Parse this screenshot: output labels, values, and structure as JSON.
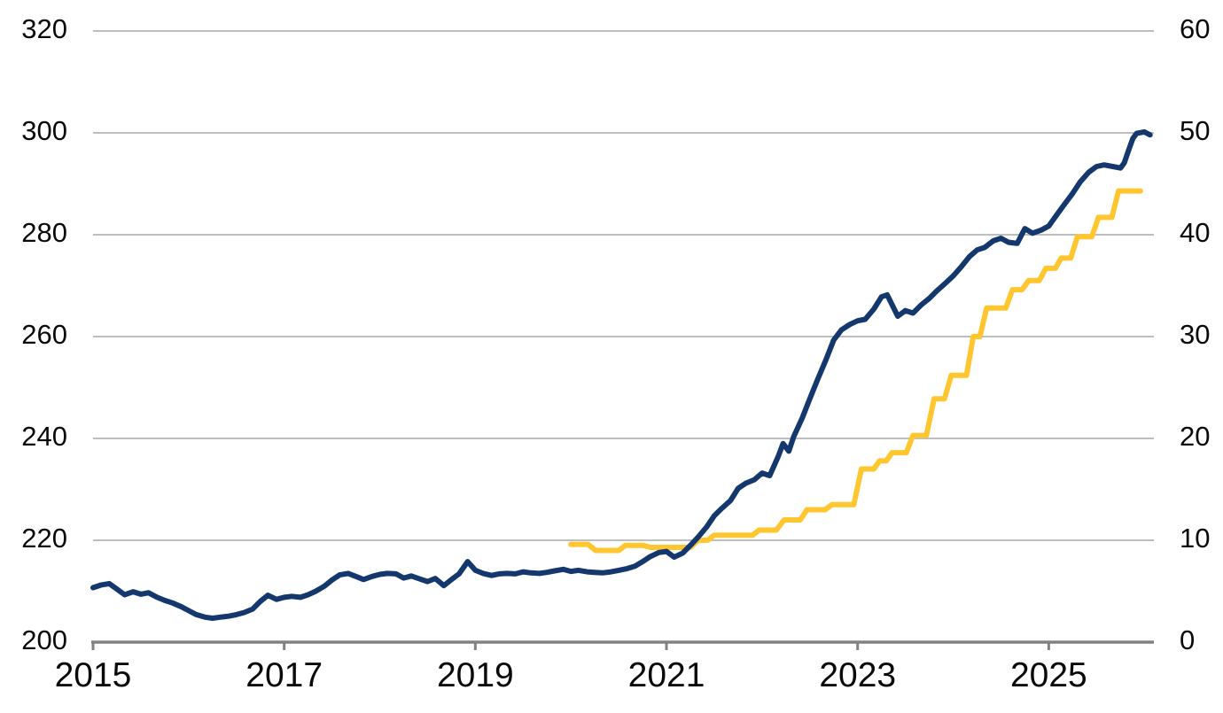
{
  "chart_data": {
    "type": "line",
    "grid": true,
    "legend": "none",
    "background": "#ffffff",
    "colors": {
      "navy_series": "#14386e",
      "yellow_series": "#ffc62f",
      "gridline": "#b4b4b4",
      "axis": "#828282",
      "label_text": "#0a0a0a"
    },
    "x_axis": {
      "range": [
        2015,
        2026.1
      ],
      "ticks": [
        2015,
        2017,
        2019,
        2021,
        2023,
        2025
      ],
      "tick_labels": [
        "2015",
        "2017",
        "2019",
        "2021",
        "2023",
        "2025"
      ]
    },
    "left_axis": {
      "range": [
        200,
        320
      ],
      "ticks": [
        200,
        220,
        240,
        260,
        280,
        300,
        320
      ],
      "tick_labels": [
        "200",
        "220",
        "240",
        "260",
        "280",
        "300",
        "320"
      ]
    },
    "right_axis": {
      "range": [
        0,
        60
      ],
      "ticks": [
        0,
        10,
        20,
        30,
        40,
        50,
        60
      ],
      "tick_labels": [
        "0",
        "10",
        "20",
        "30",
        "40",
        "50",
        "60"
      ]
    },
    "series": [
      {
        "name": "yellow-stepped-rate-line",
        "axis": "right",
        "color_key": "yellow_series",
        "points": [
          [
            2020.0,
            9.6
          ],
          [
            2020.18,
            9.6
          ],
          [
            2020.26,
            9.0
          ],
          [
            2020.5,
            9.0
          ],
          [
            2020.57,
            9.5
          ],
          [
            2020.76,
            9.5
          ],
          [
            2020.83,
            9.3
          ],
          [
            2021.25,
            9.3
          ],
          [
            2021.33,
            10.0
          ],
          [
            2021.43,
            10.0
          ],
          [
            2021.5,
            10.5
          ],
          [
            2021.9,
            10.5
          ],
          [
            2021.97,
            11.0
          ],
          [
            2022.15,
            11.0
          ],
          [
            2022.23,
            12.0
          ],
          [
            2022.4,
            12.0
          ],
          [
            2022.47,
            13.0
          ],
          [
            2022.66,
            13.0
          ],
          [
            2022.73,
            13.5
          ],
          [
            2022.96,
            13.5
          ],
          [
            2023.04,
            17.0
          ],
          [
            2023.17,
            17.0
          ],
          [
            2023.23,
            17.8
          ],
          [
            2023.3,
            17.8
          ],
          [
            2023.36,
            18.6
          ],
          [
            2023.51,
            18.6
          ],
          [
            2023.58,
            20.3
          ],
          [
            2023.72,
            20.3
          ],
          [
            2023.8,
            23.9
          ],
          [
            2023.91,
            23.9
          ],
          [
            2023.98,
            26.2
          ],
          [
            2024.14,
            26.2
          ],
          [
            2024.21,
            30.0
          ],
          [
            2024.28,
            30.0
          ],
          [
            2024.35,
            32.8
          ],
          [
            2024.55,
            32.8
          ],
          [
            2024.62,
            34.6
          ],
          [
            2024.72,
            34.6
          ],
          [
            2024.79,
            35.5
          ],
          [
            2024.9,
            35.5
          ],
          [
            2024.97,
            36.7
          ],
          [
            2025.07,
            36.7
          ],
          [
            2025.13,
            37.7
          ],
          [
            2025.23,
            37.7
          ],
          [
            2025.3,
            39.8
          ],
          [
            2025.45,
            39.8
          ],
          [
            2025.52,
            41.7
          ],
          [
            2025.66,
            41.7
          ],
          [
            2025.73,
            44.3
          ],
          [
            2025.96,
            44.3
          ]
        ]
      },
      {
        "name": "navy-index-line",
        "axis": "left",
        "color_key": "navy_series",
        "points": [
          [
            2015.0,
            210.7
          ],
          [
            2015.08,
            211.2
          ],
          [
            2015.17,
            211.5
          ],
          [
            2015.25,
            210.4
          ],
          [
            2015.33,
            209.3
          ],
          [
            2015.42,
            209.9
          ],
          [
            2015.5,
            209.4
          ],
          [
            2015.58,
            209.7
          ],
          [
            2015.67,
            208.8
          ],
          [
            2015.75,
            208.2
          ],
          [
            2015.83,
            207.7
          ],
          [
            2015.92,
            207.0
          ],
          [
            2016.0,
            206.2
          ],
          [
            2016.08,
            205.4
          ],
          [
            2016.17,
            204.9
          ],
          [
            2016.25,
            204.7
          ],
          [
            2016.33,
            204.9
          ],
          [
            2016.42,
            205.1
          ],
          [
            2016.5,
            205.4
          ],
          [
            2016.58,
            205.8
          ],
          [
            2016.67,
            206.5
          ],
          [
            2016.75,
            208.0
          ],
          [
            2016.83,
            209.2
          ],
          [
            2016.92,
            208.4
          ],
          [
            2017.0,
            208.8
          ],
          [
            2017.08,
            209.0
          ],
          [
            2017.17,
            208.8
          ],
          [
            2017.25,
            209.3
          ],
          [
            2017.33,
            210.0
          ],
          [
            2017.42,
            211.0
          ],
          [
            2017.5,
            212.2
          ],
          [
            2017.58,
            213.2
          ],
          [
            2017.67,
            213.5
          ],
          [
            2017.75,
            212.9
          ],
          [
            2017.83,
            212.3
          ],
          [
            2017.92,
            212.9
          ],
          [
            2018.0,
            213.3
          ],
          [
            2018.08,
            213.5
          ],
          [
            2018.17,
            213.4
          ],
          [
            2018.25,
            212.6
          ],
          [
            2018.33,
            213.0
          ],
          [
            2018.42,
            212.4
          ],
          [
            2018.5,
            211.9
          ],
          [
            2018.58,
            212.5
          ],
          [
            2018.67,
            211.1
          ],
          [
            2018.75,
            212.3
          ],
          [
            2018.83,
            213.4
          ],
          [
            2018.92,
            215.8
          ],
          [
            2019.0,
            214.1
          ],
          [
            2019.08,
            213.5
          ],
          [
            2019.17,
            213.1
          ],
          [
            2019.25,
            213.4
          ],
          [
            2019.33,
            213.5
          ],
          [
            2019.42,
            213.4
          ],
          [
            2019.5,
            213.8
          ],
          [
            2019.58,
            213.6
          ],
          [
            2019.67,
            213.5
          ],
          [
            2019.75,
            213.7
          ],
          [
            2019.83,
            214.0
          ],
          [
            2019.92,
            214.3
          ],
          [
            2020.0,
            213.9
          ],
          [
            2020.08,
            214.1
          ],
          [
            2020.17,
            213.8
          ],
          [
            2020.25,
            213.7
          ],
          [
            2020.33,
            213.6
          ],
          [
            2020.42,
            213.8
          ],
          [
            2020.5,
            214.1
          ],
          [
            2020.58,
            214.4
          ],
          [
            2020.67,
            214.9
          ],
          [
            2020.75,
            215.8
          ],
          [
            2020.83,
            216.8
          ],
          [
            2020.92,
            217.6
          ],
          [
            2021.0,
            217.8
          ],
          [
            2021.08,
            216.7
          ],
          [
            2021.17,
            217.5
          ],
          [
            2021.25,
            219.0
          ],
          [
            2021.33,
            220.6
          ],
          [
            2021.42,
            222.6
          ],
          [
            2021.5,
            224.8
          ],
          [
            2021.58,
            226.3
          ],
          [
            2021.67,
            227.8
          ],
          [
            2021.75,
            230.2
          ],
          [
            2021.83,
            231.2
          ],
          [
            2021.92,
            231.9
          ],
          [
            2022.0,
            233.2
          ],
          [
            2022.08,
            232.7
          ],
          [
            2022.17,
            236.5
          ],
          [
            2022.22,
            239.0
          ],
          [
            2022.28,
            237.5
          ],
          [
            2022.33,
            240.3
          ],
          [
            2022.42,
            244.0
          ],
          [
            2022.5,
            247.8
          ],
          [
            2022.58,
            251.5
          ],
          [
            2022.67,
            255.5
          ],
          [
            2022.75,
            259.3
          ],
          [
            2022.83,
            261.3
          ],
          [
            2022.92,
            262.4
          ],
          [
            2023.0,
            263.1
          ],
          [
            2023.08,
            263.4
          ],
          [
            2023.17,
            265.4
          ],
          [
            2023.25,
            267.8
          ],
          [
            2023.31,
            268.2
          ],
          [
            2023.42,
            264.0
          ],
          [
            2023.5,
            265.1
          ],
          [
            2023.58,
            264.6
          ],
          [
            2023.67,
            266.3
          ],
          [
            2023.75,
            267.5
          ],
          [
            2023.83,
            269.0
          ],
          [
            2023.92,
            270.5
          ],
          [
            2024.0,
            271.9
          ],
          [
            2024.08,
            273.6
          ],
          [
            2024.17,
            275.7
          ],
          [
            2024.25,
            277.0
          ],
          [
            2024.33,
            277.5
          ],
          [
            2024.42,
            278.8
          ],
          [
            2024.5,
            279.3
          ],
          [
            2024.58,
            278.5
          ],
          [
            2024.67,
            278.3
          ],
          [
            2024.75,
            281.2
          ],
          [
            2024.83,
            280.3
          ],
          [
            2024.92,
            280.9
          ],
          [
            2025.0,
            281.7
          ],
          [
            2025.08,
            283.8
          ],
          [
            2025.17,
            286.1
          ],
          [
            2025.25,
            288.1
          ],
          [
            2025.33,
            290.4
          ],
          [
            2025.42,
            292.3
          ],
          [
            2025.5,
            293.4
          ],
          [
            2025.58,
            293.7
          ],
          [
            2025.67,
            293.4
          ],
          [
            2025.75,
            293.1
          ],
          [
            2025.79,
            294.1
          ],
          [
            2025.83,
            296.3
          ],
          [
            2025.88,
            298.9
          ],
          [
            2025.92,
            299.9
          ],
          [
            2026.0,
            300.2
          ],
          [
            2026.06,
            299.6
          ]
        ]
      }
    ]
  }
}
